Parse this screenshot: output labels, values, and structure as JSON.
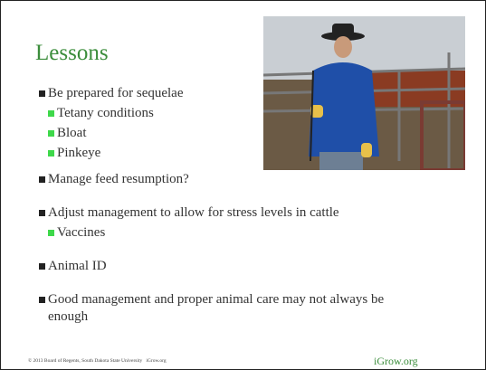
{
  "slide": {
    "title": "Lessons",
    "bullets": [
      {
        "text": "Be prepared for sequelae",
        "sub": [
          "Tetany conditions",
          "Bloat",
          "Pinkeye"
        ]
      },
      {
        "text": "Manage feed resumption?"
      },
      {
        "text": "Adjust management to allow for stress levels in cattle",
        "sub": [
          "Vaccines"
        ]
      },
      {
        "text": "Animal ID"
      },
      {
        "text": "Good management and proper animal care may not always be enough"
      }
    ],
    "footer": {
      "copyright": "© 2013 Board of Regents, South Dakota State University   iGrow.org",
      "brand": "iGrow.org"
    }
  }
}
